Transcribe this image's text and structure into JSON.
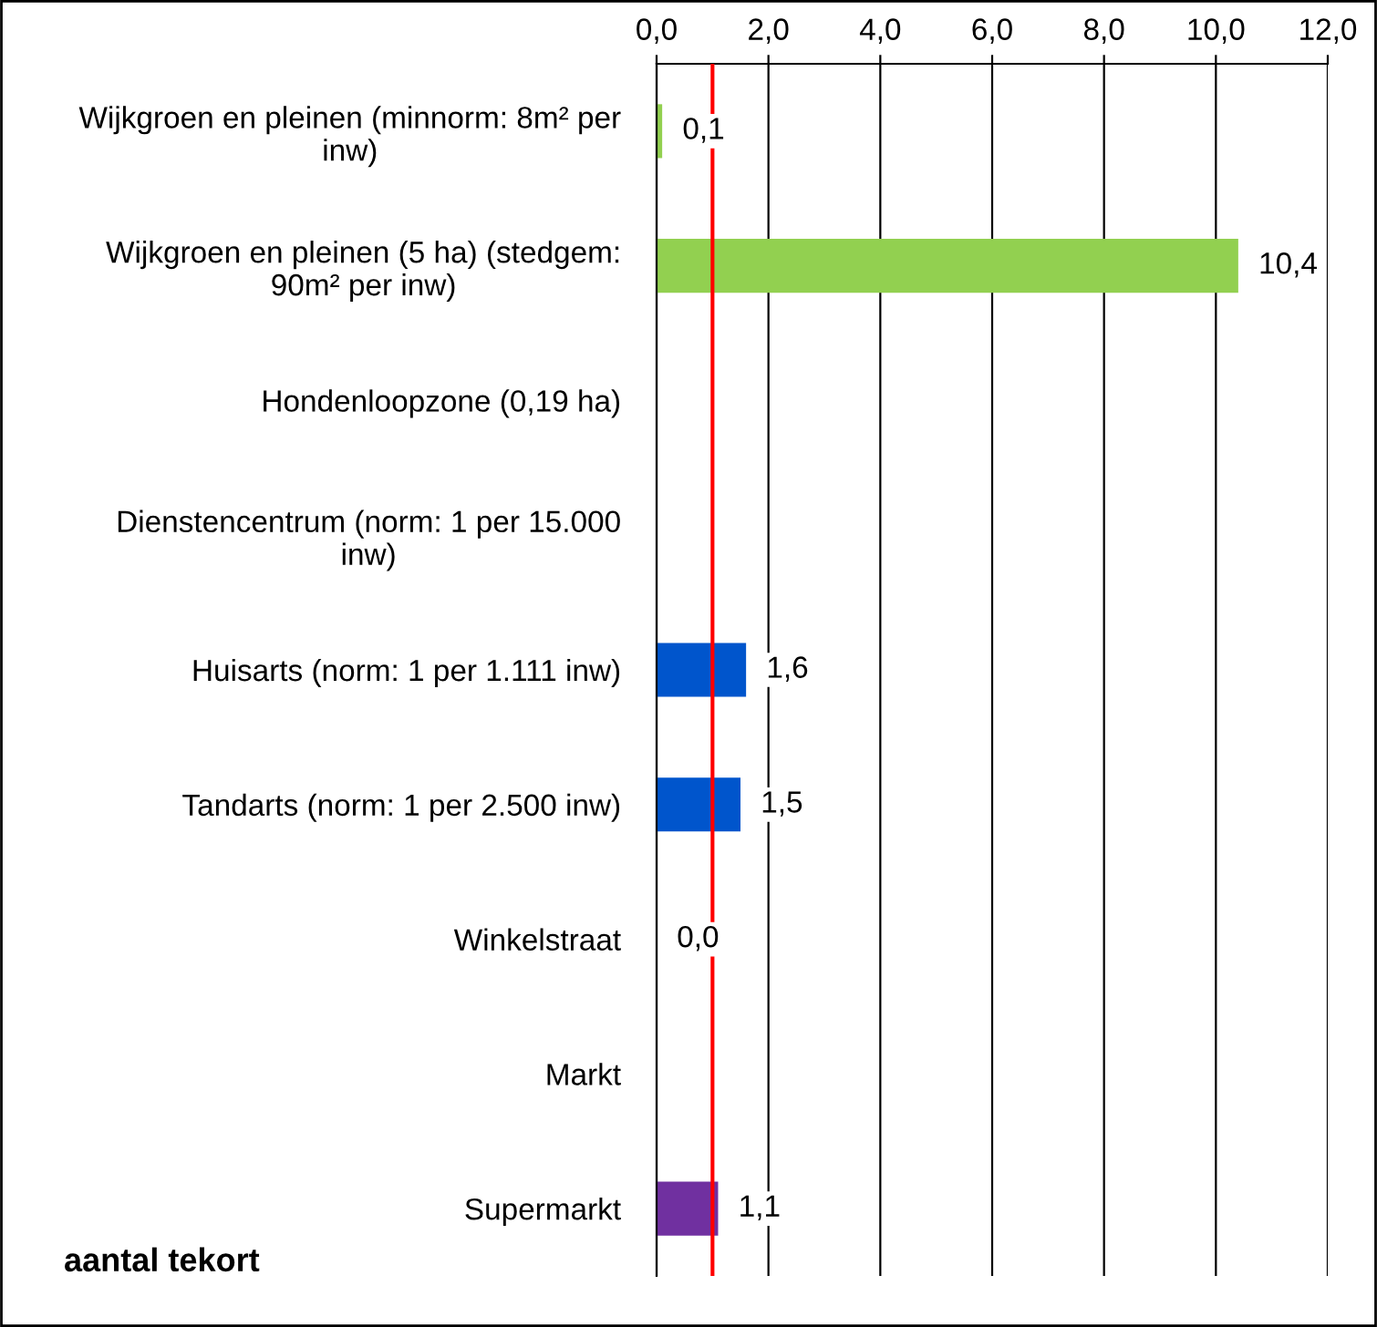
{
  "chart_data": {
    "type": "bar",
    "orientation": "horizontal",
    "categories": [
      "Wijkgroen en pleinen (minnorm: 8m² per\ninw)",
      "Wijkgroen en pleinen (5 ha) (stedgem:\n90m² per inw)",
      "Hondenloopzone (0,19 ha)",
      "Dienstencentrum (norm: 1 per 15.000\ninw)",
      "Huisarts (norm: 1 per 1.111 inw)",
      "Tandarts (norm: 1 per 2.500 inw)",
      "Winkelstraat",
      "Markt",
      "Supermarkt"
    ],
    "values": [
      0.1,
      10.4,
      null,
      null,
      1.6,
      1.5,
      0.0,
      null,
      1.1
    ],
    "colors": [
      "#92d050",
      "#92d050",
      "#92d050",
      "#0055cc",
      "#0055cc",
      "#0055cc",
      "#7030a0",
      "#7030a0",
      "#7030a0"
    ],
    "value_labels": [
      "0,1",
      "10,4",
      null,
      null,
      "1,6",
      "1,5",
      "0,0",
      null,
      "1,1"
    ],
    "xlim": [
      0,
      12
    ],
    "xticks": [
      {
        "value": 0,
        "label": "0,0"
      },
      {
        "value": 2,
        "label": "2,0"
      },
      {
        "value": 4,
        "label": "4,0"
      },
      {
        "value": 6,
        "label": "6,0"
      },
      {
        "value": 8,
        "label": "8,0"
      },
      {
        "value": 10,
        "label": "10,0"
      },
      {
        "value": 12,
        "label": "12,0"
      }
    ],
    "grid": "x",
    "ref_lines": [
      {
        "axis": "x",
        "value": 1,
        "color": "#ff0000"
      }
    ],
    "annotations": [
      "aantal tekort"
    ]
  }
}
